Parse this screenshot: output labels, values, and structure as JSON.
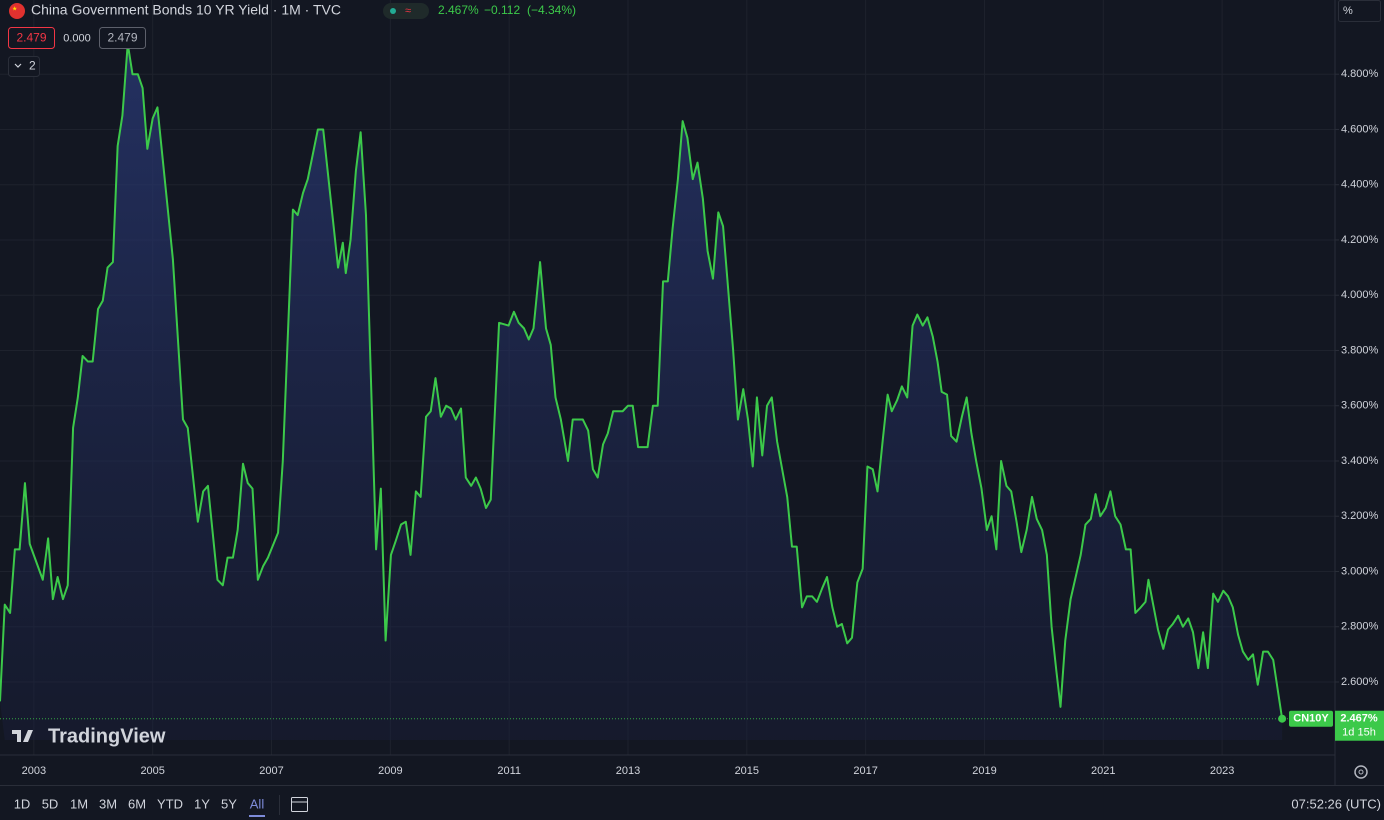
{
  "chart_data": {
    "type": "line",
    "title": "China Government Bonds 10 YR Yield · 1M · TVC",
    "x": [
      2002.43,
      2002.51,
      2002.6,
      2002.68,
      2002.76,
      2002.85,
      2002.93,
      2003.15,
      2003.24,
      2003.32,
      2003.4,
      2003.49,
      2003.57,
      2003.66,
      2003.74,
      2003.82,
      2003.91,
      2003.99,
      2004.08,
      2004.16,
      2004.24,
      2004.33,
      2004.41,
      2004.49,
      2004.58,
      2004.66,
      2004.75,
      2004.83,
      2004.91,
      2005.0,
      2005.08,
      2005.34,
      2005.51,
      2005.59,
      2005.76,
      2005.85,
      2005.93,
      2006.09,
      2006.18,
      2006.26,
      2006.35,
      2006.43,
      2006.52,
      2006.6,
      2006.68,
      2006.77,
      2006.86,
      2006.94,
      2007.11,
      2007.19,
      2007.36,
      2007.44,
      2007.53,
      2007.61,
      2007.78,
      2007.87,
      2008.03,
      2008.12,
      2008.2,
      2008.25,
      2008.33,
      2008.42,
      2008.5,
      2008.59,
      2008.76,
      2008.84,
      2008.92,
      2009.01,
      2009.09,
      2009.18,
      2009.26,
      2009.34,
      2009.43,
      2009.51,
      2009.6,
      2009.68,
      2009.76,
      2009.85,
      2009.94,
      2010.02,
      2010.1,
      2010.19,
      2010.27,
      2010.36,
      2010.44,
      2010.52,
      2010.61,
      2010.69,
      2010.78,
      2010.83,
      2010.99,
      2011.08,
      2011.16,
      2011.25,
      2011.33,
      2011.41,
      2011.52,
      2011.62,
      2011.7,
      2011.78,
      2011.87,
      2011.99,
      2012.07,
      2012.24,
      2012.33,
      2012.41,
      2012.49,
      2012.58,
      2012.66,
      2012.75,
      2012.91,
      2013.0,
      2013.08,
      2013.17,
      2013.33,
      2013.42,
      2013.5,
      2013.59,
      2013.67,
      2013.75,
      2013.84,
      2013.92,
      2014.0,
      2014.09,
      2014.17,
      2014.26,
      2014.34,
      2014.43,
      2014.52,
      2014.6,
      2014.77,
      2014.85,
      2014.94,
      2015.02,
      2015.1,
      2015.17,
      2015.26,
      2015.34,
      2015.42,
      2015.51,
      2015.68,
      2015.76,
      2015.84,
      2015.93,
      2016.01,
      2016.1,
      2016.18,
      2016.27,
      2016.35,
      2016.44,
      2016.52,
      2016.6,
      2016.69,
      2016.77,
      2016.86,
      2016.95,
      2017.03,
      2017.12,
      2017.2,
      2017.29,
      2017.37,
      2017.44,
      2017.53,
      2017.61,
      2017.7,
      2017.79,
      2017.87,
      2017.96,
      2018.04,
      2018.13,
      2018.21,
      2018.28,
      2018.37,
      2018.44,
      2018.53,
      2018.62,
      2018.7,
      2018.78,
      2018.86,
      2018.95,
      2019.04,
      2019.12,
      2019.2,
      2019.28,
      2019.37,
      2019.45,
      2019.54,
      2019.62,
      2019.71,
      2019.8,
      2019.88,
      2019.97,
      2020.05,
      2020.13,
      2020.21,
      2020.28,
      2020.36,
      2020.45,
      2020.62,
      2020.7,
      2020.79,
      2020.87,
      2020.95,
      2021.04,
      2021.12,
      2021.2,
      2021.29,
      2021.38,
      2021.46,
      2021.54,
      2021.63,
      2021.71,
      2021.76,
      2021.84,
      2021.92,
      2022.01,
      2022.09,
      2022.17,
      2022.26,
      2022.34,
      2022.43,
      2022.51,
      2022.6,
      2022.68,
      2022.76,
      2022.85,
      2022.93,
      2023.02,
      2023.1,
      2023.18,
      2023.27,
      2023.35,
      2023.44,
      2023.52,
      2023.6,
      2023.69,
      2023.77,
      2023.86,
      2024.01
    ],
    "series": [
      {
        "name": "CN10Y",
        "color": "#3cc94a",
        "values": [
          2.53,
          2.88,
          2.85,
          3.08,
          3.08,
          3.32,
          3.1,
          2.97,
          3.12,
          2.9,
          2.98,
          2.9,
          2.95,
          3.52,
          3.63,
          3.78,
          3.76,
          3.76,
          3.95,
          3.98,
          4.1,
          4.12,
          4.54,
          4.65,
          4.91,
          4.8,
          4.8,
          4.75,
          4.53,
          4.64,
          4.68,
          4.13,
          3.55,
          3.52,
          3.18,
          3.29,
          3.31,
          2.97,
          2.95,
          3.05,
          3.05,
          3.15,
          3.39,
          3.32,
          3.3,
          2.97,
          3.02,
          3.05,
          3.14,
          3.4,
          4.31,
          4.29,
          4.37,
          4.42,
          4.6,
          4.6,
          4.28,
          4.1,
          4.19,
          4.08,
          4.2,
          4.45,
          4.59,
          4.29,
          3.08,
          3.3,
          2.75,
          3.06,
          3.11,
          3.17,
          3.18,
          3.06,
          3.29,
          3.27,
          3.56,
          3.58,
          3.7,
          3.56,
          3.6,
          3.59,
          3.55,
          3.59,
          3.34,
          3.31,
          3.34,
          3.3,
          3.23,
          3.26,
          3.67,
          3.9,
          3.89,
          3.94,
          3.9,
          3.88,
          3.84,
          3.88,
          4.12,
          3.88,
          3.82,
          3.63,
          3.55,
          3.4,
          3.55,
          3.55,
          3.51,
          3.37,
          3.34,
          3.46,
          3.5,
          3.58,
          3.58,
          3.6,
          3.6,
          3.45,
          3.45,
          3.6,
          3.6,
          4.05,
          4.05,
          4.24,
          4.42,
          4.63,
          4.57,
          4.42,
          4.48,
          4.35,
          4.16,
          4.06,
          4.3,
          4.25,
          3.8,
          3.55,
          3.66,
          3.55,
          3.38,
          3.63,
          3.42,
          3.6,
          3.63,
          3.47,
          3.27,
          3.09,
          3.09,
          2.87,
          2.91,
          2.91,
          2.89,
          2.94,
          2.98,
          2.87,
          2.8,
          2.81,
          2.74,
          2.76,
          2.96,
          3.01,
          3.38,
          3.37,
          3.29,
          3.48,
          3.64,
          3.58,
          3.62,
          3.67,
          3.63,
          3.89,
          3.93,
          3.89,
          3.92,
          3.85,
          3.76,
          3.65,
          3.64,
          3.49,
          3.47,
          3.56,
          3.63,
          3.5,
          3.4,
          3.3,
          3.15,
          3.2,
          3.08,
          3.4,
          3.31,
          3.29,
          3.18,
          3.07,
          3.15,
          3.27,
          3.19,
          3.15,
          3.06,
          2.8,
          2.64,
          2.51,
          2.75,
          2.9,
          3.06,
          3.17,
          3.19,
          3.28,
          3.2,
          3.23,
          3.29,
          3.2,
          3.17,
          3.08,
          3.08,
          2.85,
          2.87,
          2.89,
          2.97,
          2.88,
          2.79,
          2.72,
          2.79,
          2.81,
          2.84,
          2.8,
          2.83,
          2.78,
          2.65,
          2.78,
          2.65,
          2.92,
          2.89,
          2.93,
          2.91,
          2.87,
          2.77,
          2.71,
          2.68,
          2.7,
          2.59,
          2.71,
          2.71,
          2.68,
          2.467
        ]
      }
    ],
    "xlim": [
      2002.43,
      2024.9
    ],
    "xticks": [
      2003,
      2005,
      2007,
      2009,
      2011,
      2013,
      2015,
      2017,
      2019,
      2021,
      2023
    ],
    "ylim": [
      2.39,
      4.96
    ],
    "yticks": [
      {
        "value": 2.6,
        "label": "2.600%"
      },
      {
        "value": 2.8,
        "label": "2.800%"
      },
      {
        "value": 3.0,
        "label": "3.000%"
      },
      {
        "value": 3.2,
        "label": "3.200%"
      },
      {
        "value": 3.4,
        "label": "3.400%"
      },
      {
        "value": 3.6,
        "label": "3.600%"
      },
      {
        "value": 3.8,
        "label": "3.800%"
      },
      {
        "value": 4.0,
        "label": "4.000%"
      },
      {
        "value": 4.2,
        "label": "4.200%"
      },
      {
        "value": 4.4,
        "label": "4.400%"
      },
      {
        "value": 4.6,
        "label": "4.600%"
      },
      {
        "value": 4.8,
        "label": "4.800%"
      }
    ],
    "grid": true,
    "area": true,
    "last_price_label": "2.467%",
    "countdown": "1d 15h",
    "scale_unit": "%"
  },
  "header": {
    "last": "2.467%",
    "change": "−0.112",
    "change_pct": "(−4.34%)",
    "sell": "2.479",
    "spread": "0.000",
    "buy": "2.479",
    "indicators": "2"
  },
  "branding": "TradingView",
  "toolbar": {
    "ranges": [
      "1D",
      "5D",
      "1M",
      "3M",
      "6M",
      "YTD",
      "1Y",
      "5Y",
      "All"
    ],
    "time": "07:52:26 (UTC)"
  }
}
